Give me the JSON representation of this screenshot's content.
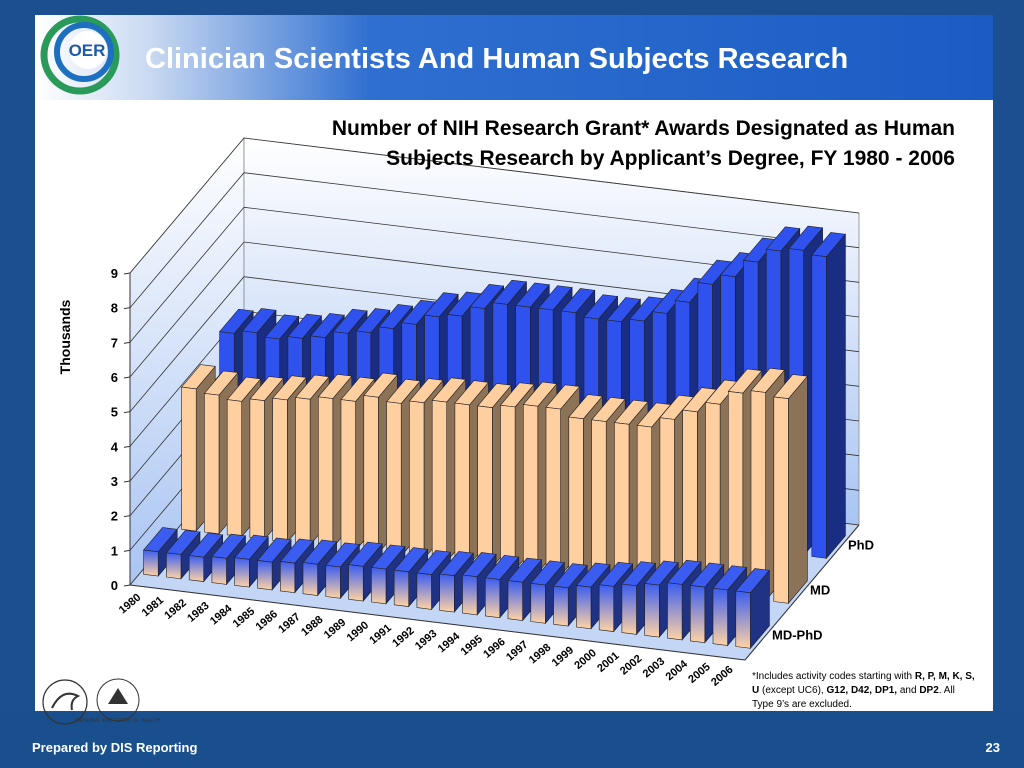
{
  "slide_title": "Clinician Scientists And Human Subjects Research",
  "logo": "OER",
  "nih_logo": "NATIONAL INSTITUTES OF HEALTH",
  "footer": "Prepared by DIS Reporting",
  "page_number": "23",
  "footnote": [
    {
      "text": "*Includes activity codes starting with ",
      "bold": false
    },
    {
      "text": "R, P, M, K, S, U",
      "bold": true
    },
    {
      "text": " (except UC6), ",
      "bold": false
    },
    {
      "text": "G12, D42, DP1,",
      "bold": true
    },
    {
      "text": " and ",
      "bold": false
    },
    {
      "text": "DP2",
      "bold": true
    },
    {
      "text": ".  All Type 9’s are excluded.",
      "bold": false
    }
  ],
  "chart_data": {
    "type": "bar3d",
    "title": [
      "Number of NIH Research Grant* Awards Designated as Human",
      "Subjects Research by Applicant’s Degree, FY 1980 - 2006"
    ],
    "ylabel": "Thousands",
    "categories": [
      "1980",
      "1981",
      "1982",
      "1983",
      "1984",
      "1985",
      "1986",
      "1987",
      "1988",
      "1989",
      "1990",
      "1991",
      "1992",
      "1993",
      "1994",
      "1995",
      "1996",
      "1997",
      "1998",
      "1999",
      "2000",
      "2001",
      "2002",
      "2003",
      "2004",
      "2005",
      "2006"
    ],
    "series": [
      {
        "name": "MD-PhD",
        "color": "#3a5cf0",
        "values": [
          0.7,
          0.7,
          0.7,
          0.75,
          0.8,
          0.8,
          0.85,
          0.9,
          0.9,
          1.0,
          1.0,
          1.0,
          1.0,
          1.05,
          1.1,
          1.1,
          1.1,
          1.1,
          1.1,
          1.2,
          1.3,
          1.4,
          1.5,
          1.6,
          1.6,
          1.6,
          1.6
        ]
      },
      {
        "name": "MD",
        "color": "#ffcf9f",
        "values": [
          4.1,
          4.0,
          3.9,
          4.0,
          4.1,
          4.2,
          4.3,
          4.3,
          4.5,
          4.4,
          4.5,
          4.6,
          4.6,
          4.6,
          4.7,
          4.8,
          4.8,
          4.6,
          4.6,
          4.6,
          4.6,
          4.9,
          5.2,
          5.5,
          5.9,
          6.0,
          5.9
        ]
      },
      {
        "name": "PhD",
        "color": "#2f52ee",
        "values": [
          4.4,
          4.5,
          4.4,
          4.5,
          4.6,
          4.8,
          4.9,
          5.1,
          5.3,
          5.6,
          5.7,
          6.0,
          6.2,
          6.2,
          6.2,
          6.2,
          6.1,
          6.1,
          6.2,
          6.5,
          6.9,
          7.5,
          7.8,
          8.3,
          8.7,
          8.8,
          8.7
        ]
      }
    ],
    "ylim": [
      0,
      9
    ],
    "yticks": [
      0,
      1,
      2,
      3,
      4,
      5,
      6,
      7,
      8,
      9
    ],
    "grid": true
  }
}
